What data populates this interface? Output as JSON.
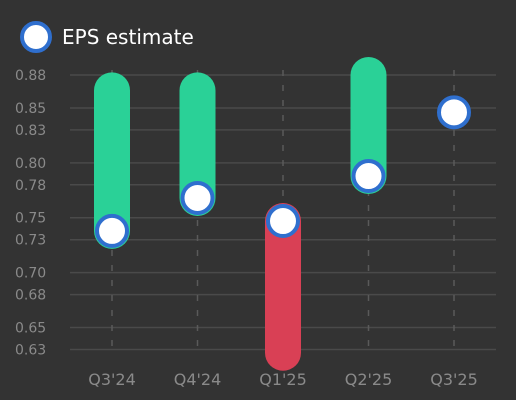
{
  "legend": {
    "label": "EPS estimate",
    "placement": "top-left"
  },
  "colors": {
    "background": "#333333",
    "beat": "#2ad197",
    "miss": "#d94055",
    "estimate_fill": "#ffffff",
    "estimate_stroke": "#2f6fce",
    "grid": "#4a4a4a",
    "text": "#8a8a8a"
  },
  "chart_data": {
    "type": "bar",
    "categories": [
      "Q3'24",
      "Q4'24",
      "Q1'25",
      "Q2'25",
      "Q3'25"
    ],
    "series": [
      {
        "name": "EPS estimate",
        "values": [
          0.738,
          0.768,
          0.747,
          0.788,
          0.846
        ]
      },
      {
        "values": [
          0.866,
          0.866,
          0.627,
          0.88,
          null
        ]
      }
    ],
    "yticks": [
      "0.63",
      "0.65",
      "0.68",
      "0.70",
      "0.73",
      "0.75",
      "0.78",
      "0.80",
      "0.83",
      "0.85",
      "0.88"
    ],
    "ylim": [
      0.625,
      0.88
    ],
    "grid": true,
    "legend": "top-left"
  }
}
